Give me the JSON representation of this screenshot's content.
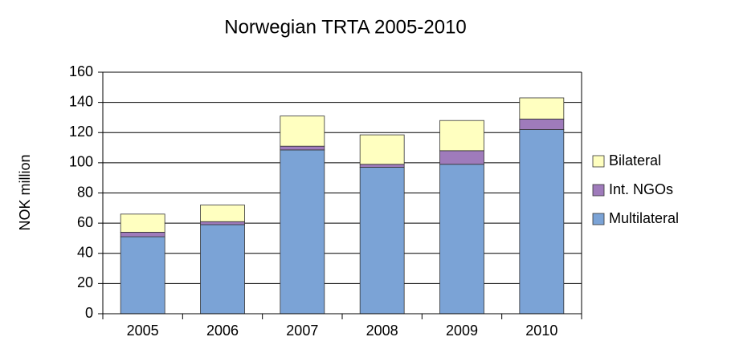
{
  "chart_data": {
    "type": "stacked_bar",
    "title": "Norwegian TRTA 2005-2010",
    "y_label": "NOK million",
    "categories": [
      "2005",
      "2006",
      "2007",
      "2008",
      "2009",
      "2010"
    ],
    "series": [
      {
        "name": "Multilateral",
        "color": "#7ba3d6",
        "values": [
          51,
          59,
          108.5,
          97,
          99,
          122
        ]
      },
      {
        "name": "Int. NGOs",
        "color": "#9f7bbb",
        "values": [
          3,
          2,
          2.5,
          2,
          9,
          7
        ]
      },
      {
        "name": "Bilateral",
        "color": "#ffffc0",
        "values": [
          12,
          11,
          20,
          19.5,
          20,
          14
        ]
      }
    ],
    "ylim": [
      0,
      160
    ],
    "yticks": [
      0,
      20,
      40,
      60,
      80,
      100,
      120,
      140,
      160
    ],
    "grid": true,
    "legend": "right"
  }
}
